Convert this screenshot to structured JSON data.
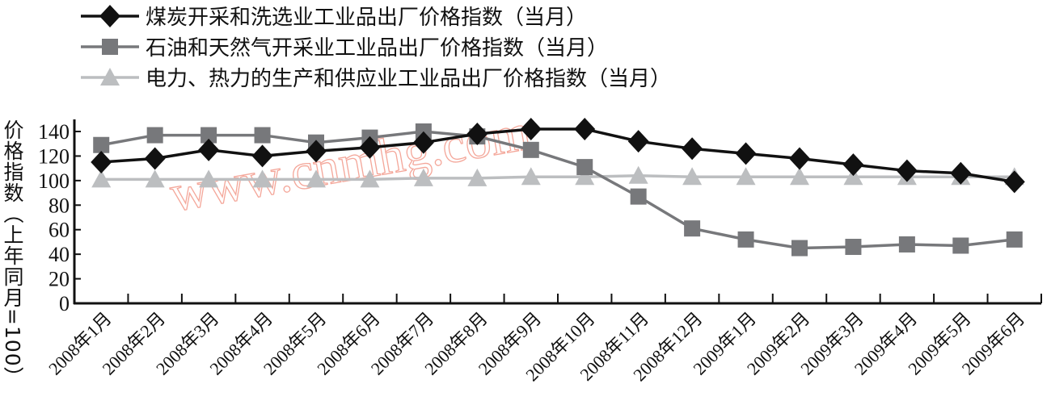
{
  "chart_data": {
    "type": "line",
    "title": "",
    "xlabel": "",
    "ylabel": "价格指数（上年同月=100）",
    "ylim": [
      0,
      140
    ],
    "yticks": [
      0,
      20,
      40,
      60,
      80,
      100,
      120,
      140
    ],
    "grid": false,
    "legend_position": "top-left",
    "watermark": "www.cnmhg.com",
    "categories": [
      "2008年1月",
      "2008年2月",
      "2008年3月",
      "2008年4月",
      "2008年5月",
      "2008年6月",
      "2008年7月",
      "2008年8月",
      "2008年9月",
      "2008年10月",
      "2008年11月",
      "2008年12月",
      "2009年1月",
      "2009年2月",
      "2009年3月",
      "2009年4月",
      "2009年5月",
      "2009年6月"
    ],
    "series": [
      {
        "name": "煤炭开采和洗选业工业品出厂价格指数（当月）",
        "marker": "diamond",
        "color": "#111111",
        "values": [
          115,
          118,
          125,
          120,
          124,
          127,
          131,
          138,
          142,
          142,
          132,
          126,
          122,
          118,
          113,
          108,
          106,
          99
        ]
      },
      {
        "name": "石油和天然气开采业工业品出厂价格指数（当月）",
        "marker": "square",
        "color": "#77787b",
        "values": [
          129,
          137,
          137,
          137,
          131,
          135,
          140,
          136,
          125,
          111,
          87,
          61,
          52,
          45,
          46,
          48,
          47,
          52
        ]
      },
      {
        "name": "电力、热力的生产和供应业工业品出厂价格指数（当月）",
        "marker": "triangle",
        "color": "#bcbec0",
        "values": [
          101,
          101,
          101,
          101,
          101,
          101,
          102,
          102,
          103,
          103,
          104,
          103,
          103,
          103,
          103,
          103,
          103,
          103
        ]
      }
    ]
  }
}
